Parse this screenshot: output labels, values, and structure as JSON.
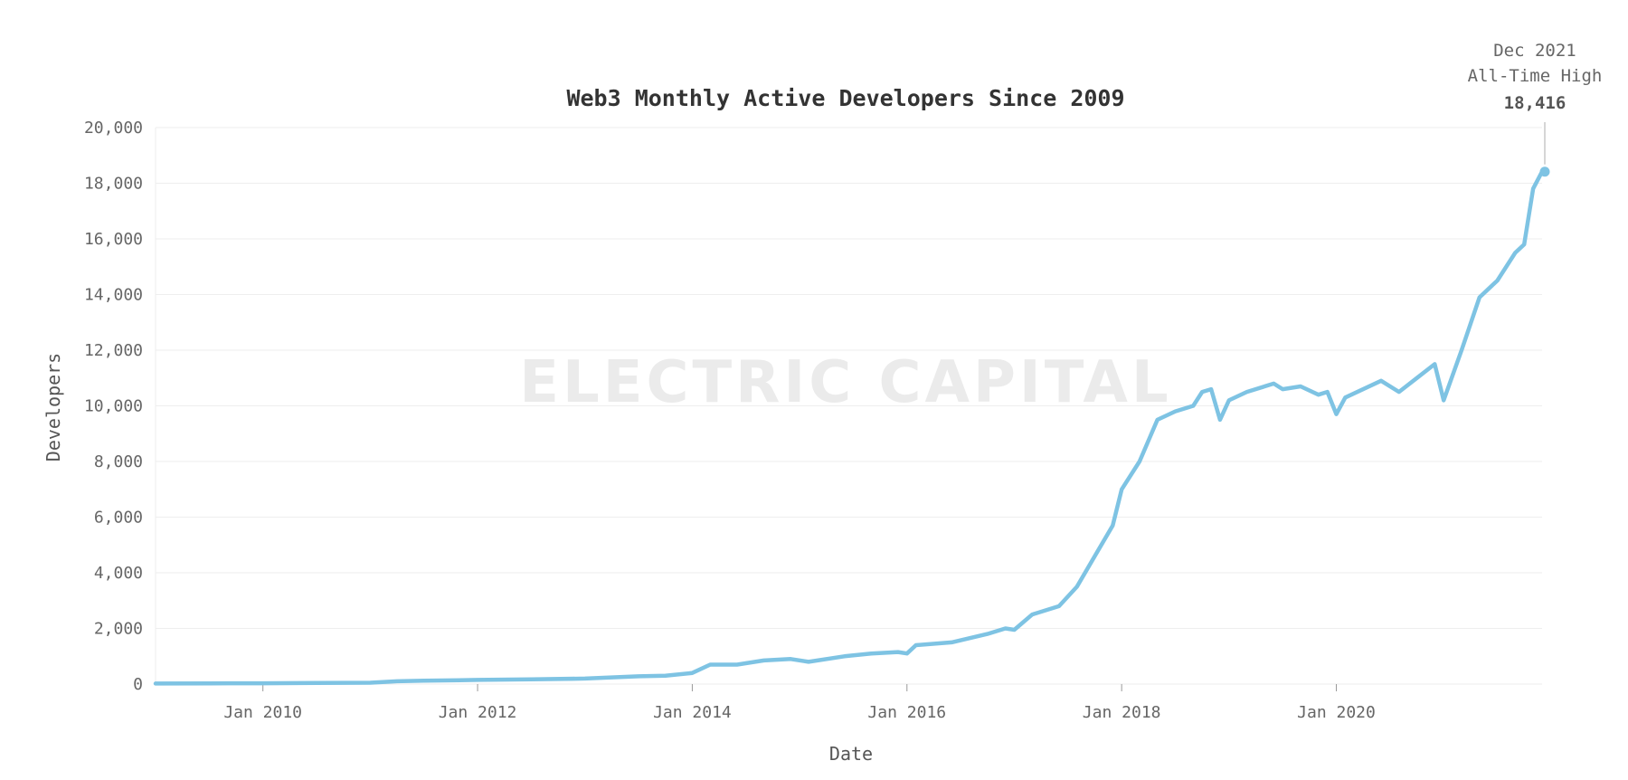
{
  "chart_data": {
    "type": "line",
    "title": "Web3 Monthly Active Developers Since 2009",
    "xlabel": "Date",
    "ylabel": "Developers",
    "watermark": "ELECTRIC CAPITAL",
    "ylim": [
      0,
      20000
    ],
    "xlim": [
      "2009-01",
      "2021-12"
    ],
    "yticks": [
      "0",
      "2,000",
      "4,000",
      "6,000",
      "8,000",
      "10,000",
      "12,000",
      "14,000",
      "16,000",
      "18,000",
      "20,000"
    ],
    "ytick_values": [
      0,
      2000,
      4000,
      6000,
      8000,
      10000,
      12000,
      14000,
      16000,
      18000,
      20000
    ],
    "xticks": [
      {
        "label": "Jan 2010",
        "date": "2010-01"
      },
      {
        "label": "Jan 2012",
        "date": "2012-01"
      },
      {
        "label": "Jan 2014",
        "date": "2014-01"
      },
      {
        "label": "Jan 2016",
        "date": "2016-01"
      },
      {
        "label": "Jan 2018",
        "date": "2018-01"
      },
      {
        "label": "Jan 2020",
        "date": "2020-01"
      }
    ],
    "grid": true,
    "color": "#7ec3e3",
    "series": [
      {
        "x": [
          "2009-01",
          "2009-07",
          "2010-01",
          "2010-07",
          "2011-01",
          "2011-04",
          "2011-07",
          "2012-01",
          "2012-07",
          "2013-01",
          "2013-07",
          "2013-10",
          "2014-01",
          "2014-03",
          "2014-06",
          "2014-09",
          "2014-12",
          "2015-02",
          "2015-06",
          "2015-09",
          "2015-12",
          "2016-01",
          "2016-02",
          "2016-06",
          "2016-10",
          "2016-12",
          "2017-01",
          "2017-03",
          "2017-06",
          "2017-08",
          "2017-10",
          "2017-12",
          "2018-01",
          "2018-03",
          "2018-05",
          "2018-07",
          "2018-09",
          "2018-10",
          "2018-11",
          "2018-12",
          "2019-01",
          "2019-03",
          "2019-06",
          "2019-07",
          "2019-09",
          "2019-11",
          "2019-12",
          "2020-01",
          "2020-02",
          "2020-04",
          "2020-06",
          "2020-08",
          "2020-10",
          "2020-12",
          "2021-01",
          "2021-03",
          "2021-05",
          "2021-07",
          "2021-09",
          "2021-10",
          "2021-11",
          "2021-12"
        ],
        "y": [
          20,
          25,
          30,
          40,
          50,
          100,
          120,
          150,
          170,
          200,
          280,
          300,
          400,
          700,
          700,
          850,
          900,
          800,
          1000,
          1100,
          1150,
          1100,
          1400,
          1500,
          1800,
          2000,
          1950,
          2500,
          2800,
          3500,
          4600,
          5700,
          7000,
          8000,
          9500,
          9800,
          10000,
          10500,
          10600,
          9500,
          10200,
          10500,
          10800,
          10600,
          10700,
          10400,
          10500,
          9700,
          10300,
          10600,
          10900,
          10500,
          11000,
          11500,
          10200,
          12000,
          13900,
          14500,
          15500,
          15800,
          17800,
          18416
        ]
      }
    ],
    "annotation": {
      "date": "2021-12",
      "value": 18416,
      "line1": "Dec 2021",
      "line2": "All-Time High",
      "value_label": "18,416"
    }
  }
}
